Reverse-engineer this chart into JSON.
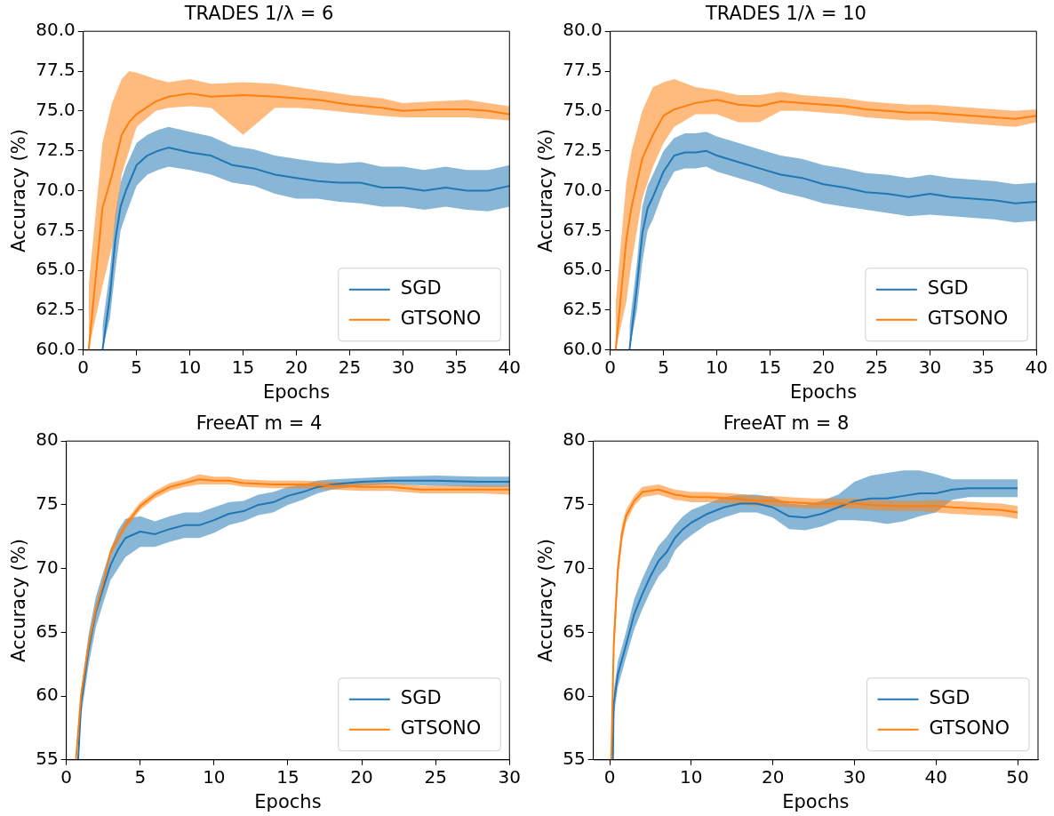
{
  "chart_data": [
    {
      "type": "line",
      "title": "TRADES 1/λ = 6",
      "xlabel": "Epochs",
      "ylabel": "Accuracy (%)",
      "xlim": [
        0,
        40
      ],
      "ylim": [
        60,
        80
      ],
      "xticks": [
        0,
        5,
        10,
        15,
        20,
        25,
        30,
        35,
        40
      ],
      "yticks": [
        {
          "value": 60,
          "label": "60.0"
        },
        62.5,
        {
          "value": 65,
          "label": "65.0"
        },
        67.5,
        {
          "value": 70,
          "label": "70.0"
        },
        72.5,
        {
          "value": 75,
          "label": "75.0"
        },
        77.5,
        {
          "value": 80,
          "label": "80.0"
        }
      ],
      "legend": "bottom right",
      "series": [
        {
          "name": "SGD",
          "color": "#1f77b4",
          "x": [
            1.8,
            2.5,
            3,
            3.5,
            4,
            5,
            6,
            7,
            8,
            10,
            12,
            14,
            16,
            18,
            20,
            22,
            24,
            26,
            28,
            30,
            32,
            34,
            36,
            38,
            40
          ],
          "values": [
            60,
            63.4,
            66.9,
            69.0,
            70.0,
            71.6,
            72.2,
            72.5,
            72.7,
            72.4,
            72.2,
            71.6,
            71.4,
            71.0,
            70.8,
            70.6,
            70.5,
            70.5,
            70.2,
            70.2,
            70.0,
            70.2,
            70.0,
            70.0,
            70.3
          ],
          "lower": [
            60,
            62.0,
            65.0,
            67.5,
            68.5,
            70.3,
            71.0,
            71.3,
            71.5,
            71.3,
            71.0,
            70.5,
            70.3,
            69.8,
            69.5,
            69.5,
            69.3,
            69.2,
            69.0,
            69.0,
            68.8,
            69.0,
            68.8,
            68.7,
            69.0
          ],
          "upper": [
            61.5,
            65.0,
            68.5,
            70.5,
            71.5,
            73.0,
            73.5,
            73.8,
            74.0,
            73.7,
            73.4,
            72.8,
            72.6,
            72.2,
            72.0,
            71.8,
            71.7,
            71.8,
            71.5,
            71.5,
            71.3,
            71.5,
            71.3,
            71.3,
            71.6
          ]
        },
        {
          "name": "GTSONO",
          "color": "#ff7f0e",
          "x": [
            0.5,
            1.8,
            2.7,
            3.6,
            4.3,
            5,
            6.8,
            8,
            10,
            12,
            15,
            18,
            20,
            22,
            25,
            28,
            30,
            33,
            36,
            38,
            40
          ],
          "values": [
            60,
            68.9,
            71.0,
            73.5,
            74.3,
            74.8,
            75.6,
            75.9,
            76.1,
            75.9,
            76.0,
            75.9,
            75.8,
            75.7,
            75.4,
            75.2,
            75.0,
            75.1,
            75.1,
            75.0,
            74.8
          ],
          "lower": [
            60,
            64.0,
            66.5,
            71.0,
            72.5,
            74.0,
            75.0,
            75.2,
            75.3,
            75.2,
            73.5,
            75.2,
            75.2,
            75.1,
            74.9,
            74.7,
            74.6,
            74.6,
            74.6,
            74.5,
            74.4
          ],
          "upper": [
            64,
            73.0,
            75.5,
            77.0,
            77.5,
            77.4,
            77.0,
            76.8,
            77.0,
            76.7,
            76.8,
            76.7,
            76.5,
            76.3,
            76.0,
            75.8,
            75.5,
            75.6,
            75.7,
            75.5,
            75.3
          ]
        }
      ]
    },
    {
      "type": "line",
      "title": "TRADES 1/λ = 10",
      "xlabel": "Epochs",
      "ylabel": "Accuracy (%)",
      "xlim": [
        0,
        40
      ],
      "ylim": [
        60,
        80
      ],
      "xticks": [
        0,
        5,
        10,
        15,
        20,
        25,
        30,
        35,
        40
      ],
      "yticks": [
        {
          "value": 60,
          "label": "60.0"
        },
        62.5,
        {
          "value": 65,
          "label": "65.0"
        },
        67.5,
        {
          "value": 70,
          "label": "70.0"
        },
        72.5,
        {
          "value": 75,
          "label": "75.0"
        },
        77.5,
        {
          "value": 80,
          "label": "80.0"
        }
      ],
      "legend": "bottom right",
      "series": [
        {
          "name": "SGD",
          "color": "#1f77b4",
          "x": [
            1.8,
            2.5,
            3,
            3.5,
            4,
            5,
            6,
            7,
            8,
            9,
            10,
            12,
            14,
            16,
            18,
            20,
            22,
            24,
            26,
            28,
            30,
            32,
            34,
            36,
            38,
            40
          ],
          "values": [
            60,
            64.0,
            67.3,
            68.9,
            69.6,
            71.2,
            72.2,
            72.4,
            72.4,
            72.5,
            72.2,
            71.8,
            71.4,
            71.0,
            70.8,
            70.4,
            70.2,
            69.9,
            69.8,
            69.6,
            69.8,
            69.6,
            69.5,
            69.4,
            69.2,
            69.3
          ],
          "lower": [
            60,
            62.5,
            65.5,
            67.5,
            68.2,
            70.0,
            71.2,
            71.4,
            71.4,
            71.5,
            71.2,
            70.8,
            70.4,
            69.9,
            69.6,
            69.2,
            69.0,
            68.8,
            68.6,
            68.4,
            68.5,
            68.4,
            68.3,
            68.2,
            68.0,
            68.1
          ],
          "upper": [
            61.5,
            65.5,
            69.0,
            70.3,
            71.0,
            72.5,
            73.3,
            73.6,
            73.6,
            73.7,
            73.4,
            73.0,
            72.6,
            72.2,
            72.0,
            71.6,
            71.4,
            71.1,
            71.0,
            70.8,
            71.0,
            70.8,
            70.7,
            70.6,
            70.4,
            70.5
          ]
        },
        {
          "name": "GTSONO",
          "color": "#ff7f0e",
          "x": [
            0.5,
            1.5,
            2,
            3,
            4,
            5,
            6,
            8,
            10,
            12,
            14,
            16,
            18,
            20,
            22,
            24,
            26,
            28,
            30,
            32,
            34,
            36,
            38,
            40
          ],
          "values": [
            60,
            66.9,
            69.0,
            72.0,
            73.5,
            74.7,
            75.1,
            75.5,
            75.7,
            75.4,
            75.3,
            75.6,
            75.5,
            75.4,
            75.3,
            75.1,
            75.0,
            74.9,
            74.9,
            74.8,
            74.7,
            74.6,
            74.5,
            74.7
          ],
          "lower": [
            60,
            63.0,
            65.5,
            69.5,
            71.5,
            73.0,
            74.0,
            74.8,
            74.8,
            74.3,
            74.3,
            75.0,
            75.0,
            74.9,
            74.8,
            74.6,
            74.5,
            74.4,
            74.4,
            74.3,
            74.2,
            74.1,
            74.0,
            74.3
          ],
          "upper": [
            63,
            70.5,
            72.5,
            75.0,
            76.5,
            76.8,
            77.0,
            76.5,
            76.3,
            76.0,
            76.0,
            76.2,
            76.0,
            75.9,
            75.8,
            75.6,
            75.5,
            75.4,
            75.4,
            75.3,
            75.2,
            75.1,
            75.0,
            75.1
          ]
        }
      ]
    },
    {
      "type": "line",
      "title": "FreeAT m = 4",
      "xlabel": "Epochs",
      "ylabel": "Accuracy (%)",
      "xlim": [
        0,
        30
      ],
      "ylim": [
        55,
        80
      ],
      "xticks": [
        0,
        5,
        10,
        15,
        20,
        25,
        30
      ],
      "yticks": [
        55,
        60,
        65,
        70,
        75,
        80
      ],
      "legend": "bottom right",
      "series": [
        {
          "name": "SGD",
          "color": "#1f77b4",
          "x": [
            0.8,
            1,
            1.5,
            2,
            2.5,
            3,
            3.5,
            4,
            5,
            6,
            7,
            8,
            9,
            10,
            11,
            12,
            13,
            14,
            15,
            16,
            17,
            18,
            20,
            22,
            25,
            28,
            30
          ],
          "values": [
            55,
            59.4,
            63.6,
            66.6,
            68.5,
            70.3,
            71.5,
            72.4,
            72.9,
            72.7,
            73.1,
            73.4,
            73.4,
            73.8,
            74.3,
            74.5,
            75.0,
            75.2,
            75.7,
            76.0,
            76.4,
            76.6,
            76.8,
            76.9,
            76.9,
            76.8,
            76.8
          ],
          "lower": [
            55,
            58.4,
            62.4,
            65.4,
            67.3,
            69.1,
            70.0,
            70.9,
            71.7,
            71.7,
            72.1,
            72.4,
            72.4,
            72.8,
            73.4,
            73.7,
            74.2,
            74.4,
            75.0,
            75.4,
            75.9,
            76.2,
            76.5,
            76.6,
            76.5,
            76.4,
            76.4
          ],
          "upper": [
            55.5,
            60.4,
            64.8,
            67.8,
            69.7,
            71.5,
            73.0,
            73.9,
            74.1,
            73.7,
            74.1,
            74.4,
            74.4,
            74.8,
            75.2,
            75.3,
            75.8,
            76.0,
            76.4,
            76.6,
            76.9,
            77.0,
            77.1,
            77.2,
            77.3,
            77.2,
            77.2
          ]
        },
        {
          "name": "GTSONO",
          "color": "#ff7f0e",
          "x": [
            0.65,
            1,
            1.5,
            2,
            2.5,
            3,
            4,
            5,
            6,
            7,
            8,
            9,
            10,
            11,
            12,
            14,
            16,
            18,
            20,
            22,
            24,
            26,
            28,
            30
          ],
          "values": [
            55,
            60.1,
            64.0,
            66.8,
            68.9,
            71.3,
            73.4,
            74.9,
            75.8,
            76.4,
            76.7,
            77.0,
            76.9,
            76.9,
            76.7,
            76.6,
            76.6,
            76.5,
            76.4,
            76.4,
            76.2,
            76.2,
            76.2,
            76.2
          ],
          "lower": [
            55,
            59.8,
            63.7,
            66.5,
            68.6,
            71.0,
            73.1,
            74.6,
            75.5,
            76.1,
            76.4,
            76.6,
            76.6,
            76.6,
            76.4,
            76.3,
            76.3,
            76.2,
            76.1,
            76.1,
            75.9,
            75.9,
            75.9,
            75.8
          ],
          "upper": [
            55.5,
            60.4,
            64.3,
            67.1,
            69.2,
            71.6,
            73.7,
            75.2,
            76.1,
            76.7,
            77.0,
            77.4,
            77.2,
            77.2,
            77.0,
            76.9,
            76.9,
            76.8,
            76.7,
            76.7,
            76.5,
            76.5,
            76.5,
            76.5
          ]
        }
      ]
    },
    {
      "type": "line",
      "title": "FreeAT m = 8",
      "xlabel": "Epochs",
      "ylabel": "Accuracy (%)",
      "xlim": [
        -2,
        52.5
      ],
      "ylim": [
        55,
        80
      ],
      "xticks": [
        0,
        10,
        20,
        30,
        40,
        50
      ],
      "yticks": [
        55,
        60,
        65,
        70,
        75,
        80
      ],
      "legend": "bottom right",
      "series": [
        {
          "name": "SGD",
          "color": "#1f77b4",
          "x": [
            0.4,
            0.5,
            1,
            2,
            3,
            4,
            5,
            6,
            7,
            8,
            9,
            10,
            12,
            14,
            16,
            18,
            20,
            22,
            24,
            26,
            28,
            30,
            32,
            34,
            36,
            38,
            40,
            42,
            44,
            46,
            48,
            50
          ],
          "values": [
            55,
            59.4,
            61.7,
            64.0,
            66.4,
            68.0,
            69.4,
            70.6,
            71.3,
            72.4,
            73.1,
            73.6,
            74.3,
            74.8,
            75.1,
            75.1,
            74.8,
            74.1,
            74.0,
            74.3,
            74.8,
            75.3,
            75.5,
            75.5,
            75.7,
            75.9,
            75.9,
            76.2,
            76.3,
            76.3,
            76.3,
            76.3
          ],
          "lower": [
            55,
            58.4,
            60.7,
            63.0,
            65.2,
            66.8,
            68.2,
            69.4,
            70.1,
            71.4,
            72.1,
            72.6,
            73.5,
            74.0,
            74.4,
            74.4,
            74.0,
            73.1,
            73.0,
            73.3,
            73.8,
            73.8,
            73.7,
            73.5,
            73.7,
            74.1,
            74.4,
            75.4,
            75.6,
            75.6,
            75.6,
            75.6
          ],
          "upper": [
            55.5,
            60.4,
            62.7,
            65.0,
            67.6,
            69.2,
            70.6,
            71.8,
            72.5,
            73.4,
            74.1,
            74.6,
            75.1,
            75.6,
            75.8,
            75.8,
            75.6,
            75.1,
            75.0,
            75.3,
            75.8,
            76.8,
            77.3,
            77.5,
            77.7,
            77.7,
            77.4,
            77.0,
            77.0,
            77.0,
            77.0,
            77.0
          ]
        },
        {
          "name": "GTSONO",
          "color": "#ff7f0e",
          "x": [
            0.2,
            0.5,
            1,
            1.5,
            2,
            3,
            4,
            6,
            8,
            10,
            12,
            15,
            18,
            20,
            22,
            25,
            28,
            30,
            32,
            35,
            38,
            40,
            42,
            45,
            48,
            50
          ],
          "values": [
            55,
            64.0,
            69.9,
            72.7,
            74.1,
            75.3,
            76.0,
            76.2,
            75.8,
            75.6,
            75.6,
            75.5,
            75.3,
            75.3,
            75.2,
            75.1,
            75.1,
            75.1,
            75.0,
            74.9,
            74.9,
            74.9,
            74.8,
            74.7,
            74.6,
            74.4
          ],
          "lower": [
            55,
            62.5,
            69.0,
            72.0,
            73.6,
            74.9,
            75.6,
            75.8,
            75.4,
            75.2,
            75.2,
            75.1,
            74.9,
            74.9,
            74.8,
            74.7,
            74.7,
            74.7,
            74.6,
            74.5,
            74.5,
            74.4,
            74.3,
            74.2,
            74.1,
            73.9
          ],
          "upper": [
            56,
            65.5,
            70.8,
            73.4,
            74.6,
            75.7,
            76.4,
            76.6,
            76.2,
            76.0,
            76.0,
            75.9,
            75.7,
            75.7,
            75.6,
            75.5,
            75.5,
            75.5,
            75.4,
            75.3,
            75.3,
            75.4,
            75.3,
            75.2,
            75.1,
            74.9
          ]
        }
      ]
    }
  ]
}
